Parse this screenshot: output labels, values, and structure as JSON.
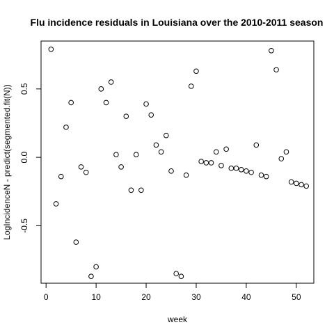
{
  "chart_data": {
    "type": "scatter",
    "title": "Flu incidence residuals in Louisiana over the 2010-2011 season",
    "xlabel": "week",
    "ylabel": "LogIncidenceN - predict(segmented.fit(N))",
    "xlim": [
      -1,
      53.5
    ],
    "ylim": [
      -0.92,
      0.85
    ],
    "x_ticks": [
      0,
      10,
      20,
      30,
      40,
      50
    ],
    "y_ticks": [
      -0.5,
      0.0,
      0.5
    ],
    "y_tick_labels": [
      "-0.5",
      "0.0",
      "0.5"
    ],
    "grid": false,
    "marker": "open-circle",
    "series": [
      {
        "x": [
          1,
          2,
          3,
          4,
          5,
          6,
          7,
          8,
          9,
          10,
          11,
          12,
          13,
          14,
          15,
          16,
          17,
          18,
          19,
          20,
          21,
          22,
          23,
          24,
          25,
          26,
          27,
          28,
          29,
          30,
          31,
          32,
          33,
          34,
          35,
          36,
          37,
          38,
          39,
          40,
          41,
          42,
          43,
          44,
          45,
          46,
          47,
          48,
          49,
          50,
          51,
          52
        ],
        "y": [
          0.79,
          -0.34,
          -0.14,
          0.22,
          0.4,
          -0.62,
          -0.07,
          -0.11,
          -0.87,
          -0.8,
          0.5,
          0.4,
          0.55,
          0.02,
          -0.07,
          0.3,
          -0.24,
          0.02,
          -0.24,
          0.39,
          0.31,
          0.09,
          0.04,
          0.16,
          -0.1,
          -0.85,
          -0.87,
          -0.13,
          0.52,
          0.63,
          -0.03,
          -0.04,
          -0.04,
          0.04,
          -0.06,
          0.06,
          -0.08,
          -0.08,
          -0.09,
          -0.1,
          -0.11,
          0.09,
          -0.13,
          -0.14,
          0.78,
          0.64,
          -0.01,
          0.04,
          -0.18,
          -0.19,
          -0.2,
          -0.21
        ]
      }
    ]
  }
}
